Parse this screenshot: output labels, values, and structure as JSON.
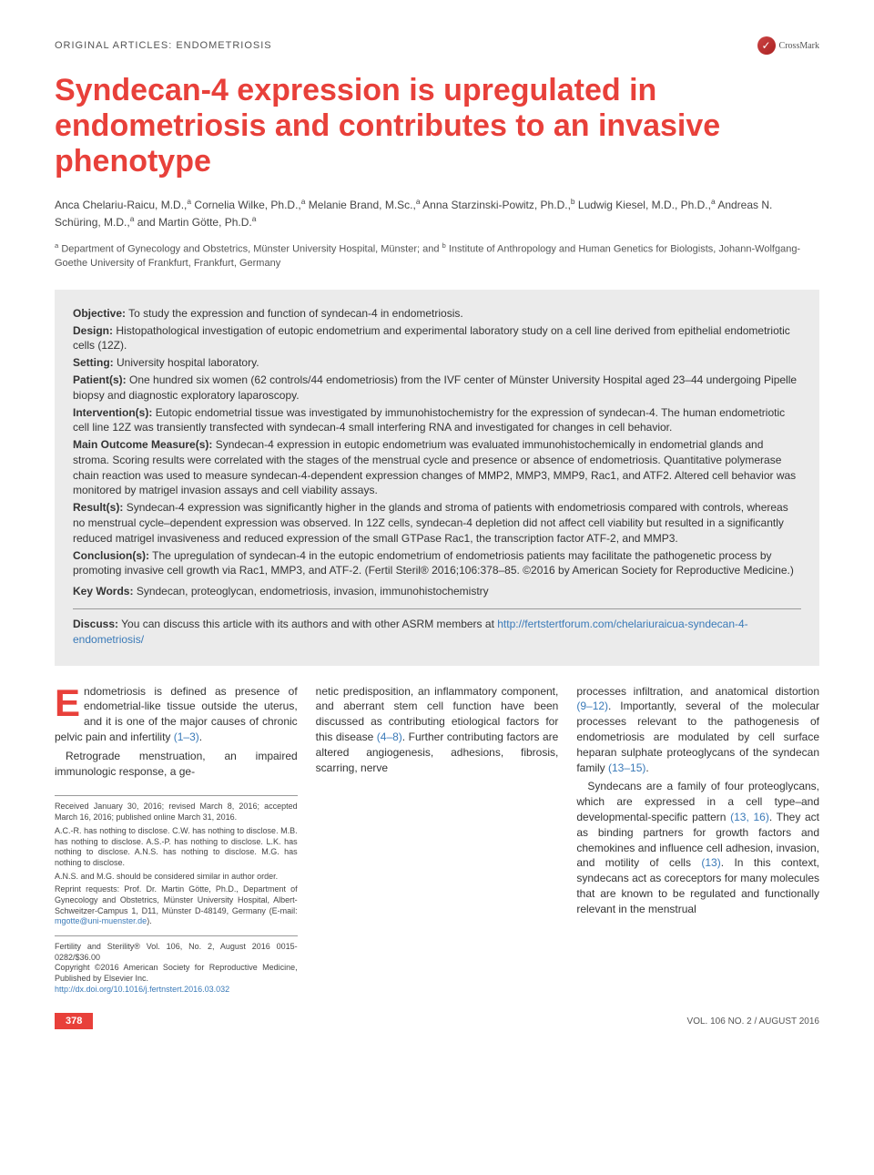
{
  "header": {
    "section_label": "ORIGINAL ARTICLES: ENDOMETRIOSIS",
    "crossmark": "CrossMark"
  },
  "title": "Syndecan-4 expression is upregulated in endometriosis and contributes to an invasive phenotype",
  "authors_html": "Anca Chelariu-Raicu, M.D.,<sup>a</sup> Cornelia Wilke, Ph.D.,<sup>a</sup> Melanie Brand, M.Sc.,<sup>a</sup> Anna Starzinski-Powitz, Ph.D.,<sup>b</sup> Ludwig Kiesel, M.D., Ph.D.,<sup>a</sup> Andreas N. Schüring, M.D.,<sup>a</sup> and Martin Götte, Ph.D.<sup>a</sup>",
  "affiliations_html": "<sup>a</sup> Department of Gynecology and Obstetrics, Münster University Hospital, Münster; and <sup>b</sup> Institute of Anthropology and Human Genetics for Biologists, Johann-Wolfgang-Goethe University of Frankfurt, Frankfurt, Germany",
  "abstract": {
    "objective": "To study the expression and function of syndecan-4 in endometriosis.",
    "design": "Histopathological investigation of eutopic endometrium and experimental laboratory study on a cell line derived from epithelial endometriotic cells (12Z).",
    "setting": "University hospital laboratory.",
    "patients": "One hundred six women (62 controls/44 endometriosis) from the IVF center of Münster University Hospital aged 23–44 undergoing Pipelle biopsy and diagnostic exploratory laparoscopy.",
    "interventions": "Eutopic endometrial tissue was investigated by immunohistochemistry for the expression of syndecan-4. The human endometriotic cell line 12Z was transiently transfected with syndecan-4 small interfering RNA and investigated for changes in cell behavior.",
    "main_outcome": "Syndecan-4 expression in eutopic endometrium was evaluated immunohistochemically in endometrial glands and stroma. Scoring results were correlated with the stages of the menstrual cycle and presence or absence of endometriosis. Quantitative polymerase chain reaction was used to measure syndecan-4-dependent expression changes of MMP2, MMP3, MMP9, Rac1, and ATF2. Altered cell behavior was monitored by matrigel invasion assays and cell viability assays.",
    "results": "Syndecan-4 expression was significantly higher in the glands and stroma of patients with endometriosis compared with controls, whereas no menstrual cycle–dependent expression was observed. In 12Z cells, syndecan-4 depletion did not affect cell viability but resulted in a significantly reduced matrigel invasiveness and reduced expression of the small GTPase Rac1, the transcription factor ATF-2, and MMP3.",
    "conclusions": "The upregulation of syndecan-4 in the eutopic endometrium of endometriosis patients may facilitate the pathogenetic process by promoting invasive cell growth via Rac1, MMP3, and ATF-2. (Fertil Steril® 2016;106:378–85. ©2016 by American Society for Reproductive Medicine.)",
    "keywords": "Syndecan, proteoglycan, endometriosis, invasion, immunohistochemistry",
    "discuss_pre": "You can discuss this article with its authors and with other ASRM members at ",
    "discuss_link": "http://fertstertforum.com/chelariuraicua-syndecan-4-endometriosis/"
  },
  "body": {
    "col1_p1": "ndometriosis is defined as presence of endometrial-like tissue outside the uterus, and it is one of the major causes of chronic pelvic pain and infertility ",
    "col1_ref1": "(1–3)",
    "col1_p2": "Retrograde menstruation, an impaired immunologic response, a ge-",
    "col2_p1": "netic predisposition, an inflammatory component, and aberrant stem cell function have been discussed as contributing etiological factors for this disease ",
    "col2_ref1": "(4–8)",
    "col2_p2": ". Further contributing factors are altered angiogenesis, adhesions, fibrosis, scarring, nerve",
    "col3_p1": "processes infiltration, and anatomical distortion ",
    "col3_ref1": "(9–12)",
    "col3_p2": ". Importantly, several of the molecular processes relevant to the pathogenesis of endometriosis are modulated by cell surface heparan sulphate proteoglycans of the syndecan family ",
    "col3_ref2": "(13–15)",
    "col3_p3": "Syndecans are a family of four proteoglycans, which are expressed in a cell type–and developmental-specific pattern ",
    "col3_ref3": "(13, 16)",
    "col3_p4": ". They act as binding partners for growth factors and chemokines and influence cell adhesion, invasion, and motility of cells ",
    "col3_ref4": "(13)",
    "col3_p5": ". In this context, syndecans act as coreceptors for many molecules that are known to be regulated and functionally relevant in the menstrual"
  },
  "footnotes": {
    "received": "Received January 30, 2016; revised March 8, 2016; accepted March 16, 2016; published online March 31, 2016.",
    "disclosure": "A.C.-R. has nothing to disclose. C.W. has nothing to disclose. M.B. has nothing to disclose. A.S.-P. has nothing to disclose. L.K. has nothing to disclose. A.N.S. has nothing to disclose. M.G. has nothing to disclose.",
    "author_order": "A.N.S. and M.G. should be considered similar in author order.",
    "reprint": "Reprint requests: Prof. Dr. Martin Götte, Ph.D., Department of Gynecology and Obstetrics, Münster University Hospital, Albert-Schweitzer-Campus 1, D11, Münster D-48149, Germany (E-mail: ",
    "reprint_email": "mgotte@uni-muenster.de",
    "reprint_close": ")."
  },
  "copyright": {
    "line1": "Fertility and Sterility® Vol. 106, No. 2, August 2016 0015-0282/$36.00",
    "line2": "Copyright ©2016 American Society for Reproductive Medicine, Published by Elsevier Inc.",
    "doi": "http://dx.doi.org/10.1016/j.fertnstert.2016.03.032"
  },
  "footer": {
    "page": "378",
    "issue": "VOL. 106 NO. 2 / AUGUST 2016"
  },
  "colors": {
    "accent": "#e8403a",
    "link": "#3a7ab8",
    "abstract_bg": "#ebebeb"
  }
}
